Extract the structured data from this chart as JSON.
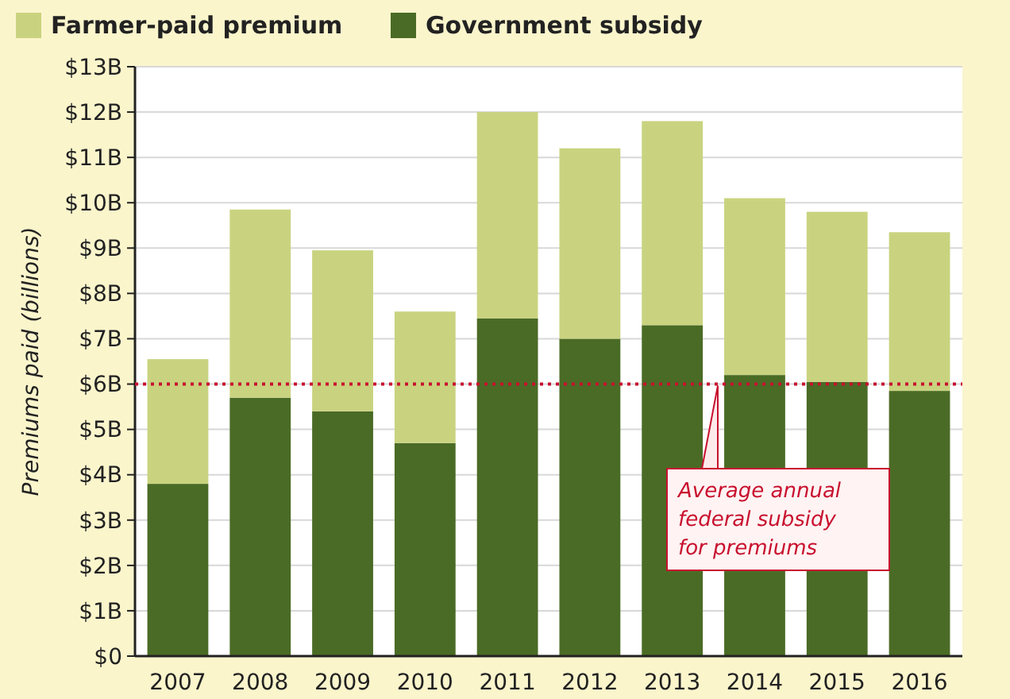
{
  "chart_data": {
    "type": "bar",
    "stacked": true,
    "ylabel": "Premiums paid (billions)",
    "categories": [
      "2007",
      "2008",
      "2009",
      "2010",
      "2011",
      "2012",
      "2013",
      "2014",
      "2015",
      "2016"
    ],
    "series": [
      {
        "name": "Government subsidy",
        "color": "#4a6b25",
        "values": [
          3.8,
          5.7,
          5.4,
          4.7,
          7.45,
          7.0,
          7.3,
          6.2,
          6.05,
          5.85
        ]
      },
      {
        "name": "Farmer-paid premium",
        "color": "#c9d37f",
        "values": [
          2.75,
          4.15,
          3.55,
          2.9,
          4.55,
          4.2,
          4.5,
          3.9,
          3.75,
          3.5
        ]
      }
    ],
    "ylim": [
      0,
      13
    ],
    "yticks": [
      {
        "value": 0,
        "label": "$0"
      },
      {
        "value": 1,
        "label": "$1B"
      },
      {
        "value": 2,
        "label": "$2B"
      },
      {
        "value": 3,
        "label": "$3B"
      },
      {
        "value": 4,
        "label": "$4B"
      },
      {
        "value": 5,
        "label": "$5B"
      },
      {
        "value": 6,
        "label": "$6B"
      },
      {
        "value": 7,
        "label": "$7B"
      },
      {
        "value": 8,
        "label": "$8B"
      },
      {
        "value": 9,
        "label": "$9B"
      },
      {
        "value": 10,
        "label": "$10B"
      },
      {
        "value": 11,
        "label": "$11B"
      },
      {
        "value": 12,
        "label": "$12B"
      },
      {
        "value": 13,
        "label": "$13B"
      }
    ],
    "grid": "y",
    "legend": "top left",
    "ref_lines": [
      {
        "axis": "y",
        "value": 6,
        "label": "Average annual federal subsidy for premiums",
        "color": "#c8102e",
        "line_style": "dotted"
      }
    ]
  }
}
